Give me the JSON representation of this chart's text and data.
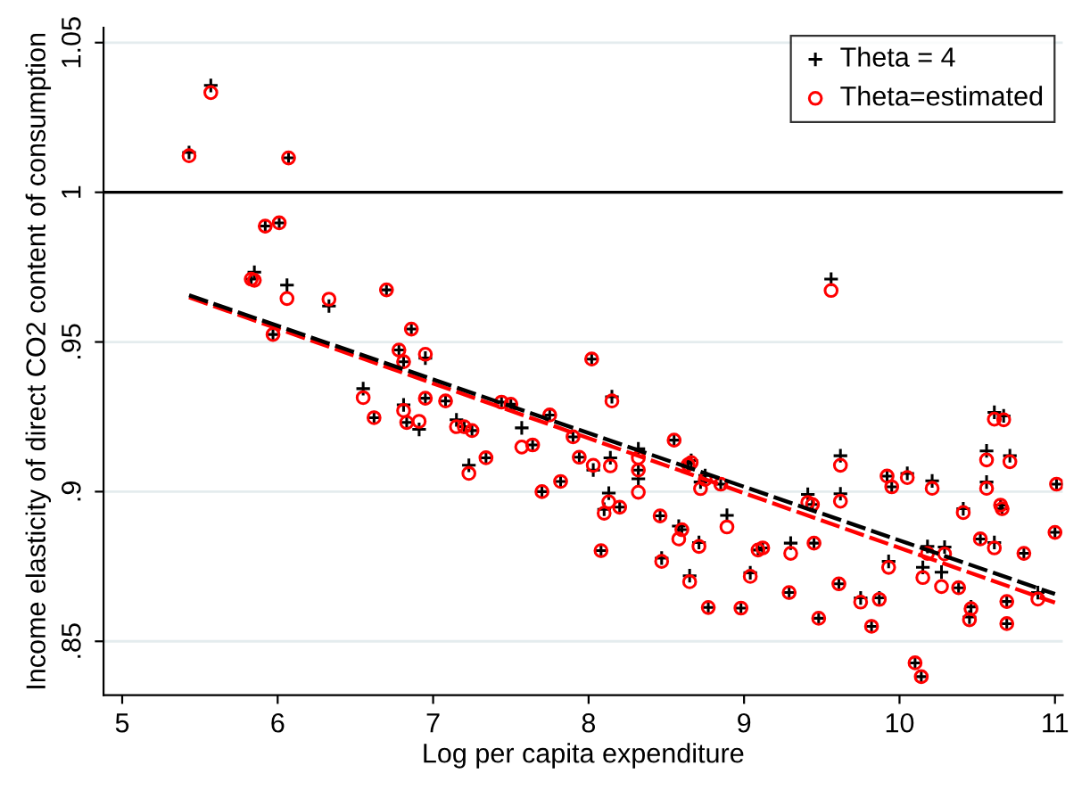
{
  "chart_data": {
    "type": "scatter",
    "xlabel": "Log per capita expenditure",
    "ylabel": "Income elasticity of direct CO2 content of consumption",
    "xlim": [
      4.88,
      11.05
    ],
    "ylim": [
      0.832,
      1.055
    ],
    "xticks": [
      5,
      6,
      7,
      8,
      9,
      10,
      11
    ],
    "yticks": [
      {
        "value": 0.85,
        "label": ".85"
      },
      {
        "value": 0.9,
        "label": ".9"
      },
      {
        "value": 0.95,
        "label": ".95"
      },
      {
        "value": 1,
        "label": "1"
      },
      {
        "value": 1.05,
        "label": "1.05"
      }
    ],
    "grid": "y",
    "legend": "top right",
    "ref_lines": [
      {
        "axis": "y",
        "value": 1,
        "color": "#000000",
        "line_style": "solid"
      }
    ],
    "series": [
      {
        "name": "Theta = 4",
        "marker": "cross",
        "color": "#000000",
        "x": [
          5.43,
          5.57,
          6.07,
          5.92,
          6.01,
          5.83,
          5.85,
          6.06,
          5.97,
          6.33,
          6.7,
          6.86,
          6.78,
          6.81,
          6.95,
          6.95,
          7.08,
          6.55,
          6.62,
          6.81,
          6.83,
          6.91,
          7.15,
          7.2,
          7.25,
          7.23,
          7.34,
          7.44,
          7.5,
          7.57,
          7.64,
          7.75,
          7.7,
          7.82,
          7.9,
          7.94,
          8.02,
          8.03,
          8.08,
          8.1,
          8.15,
          8.14,
          8.13,
          8.2,
          8.32,
          8.32,
          8.32,
          8.46,
          8.47,
          8.55,
          8.58,
          8.6,
          8.64,
          8.66,
          8.65,
          8.71,
          8.72,
          8.75,
          8.77,
          8.85,
          8.89,
          8.98,
          9.04,
          9.09,
          9.12,
          9.29,
          9.3,
          9.41,
          9.44,
          9.45,
          9.48,
          9.56,
          9.62,
          9.62,
          9.61,
          9.75,
          9.82,
          9.87,
          9.92,
          9.95,
          9.93,
          10.05,
          10.1,
          10.14,
          10.15,
          10.18,
          10.21,
          10.29,
          10.27,
          10.38,
          10.41,
          10.46,
          10.45,
          10.52,
          10.56,
          10.56,
          10.61,
          10.67,
          10.61,
          10.65,
          10.66,
          10.69,
          10.69,
          10.71,
          10.8,
          10.89,
          11.01,
          11.0
        ],
        "values": [
          1.0133,
          1.0357,
          1.0115,
          0.9887,
          0.9898,
          0.971,
          0.9733,
          0.969,
          0.9525,
          0.962,
          0.9674,
          0.9543,
          0.9473,
          0.9434,
          0.9446,
          0.9312,
          0.9303,
          0.9344,
          0.9247,
          0.929,
          0.9231,
          0.9208,
          0.924,
          0.9217,
          0.9204,
          0.9088,
          0.9113,
          0.9299,
          0.9292,
          0.9213,
          0.9156,
          0.9256,
          0.9,
          0.9034,
          0.9183,
          0.9115,
          0.9443,
          0.9072,
          0.8803,
          0.8941,
          0.9317,
          0.9113,
          0.8995,
          0.8948,
          0.9143,
          0.9072,
          0.9043,
          0.8919,
          0.8778,
          0.9172,
          0.8885,
          0.8873,
          0.9095,
          0.9104,
          0.8719,
          0.883,
          0.9032,
          0.9054,
          0.8613,
          0.9025,
          0.8921,
          0.8611,
          0.8729,
          0.8805,
          0.8812,
          0.8663,
          0.8828,
          0.8991,
          0.8957,
          0.8828,
          0.8577,
          0.971,
          0.912,
          0.8993,
          0.8692,
          0.8645,
          0.855,
          0.8645,
          0.9052,
          0.9016,
          0.8767,
          0.9061,
          0.8428,
          0.8382,
          0.8747,
          0.8817,
          0.9036,
          0.8815,
          0.8731,
          0.8679,
          0.8943,
          0.8615,
          0.8581,
          0.8842,
          0.9136,
          0.9032,
          0.9265,
          0.9253,
          0.883,
          0.8955,
          0.8943,
          0.8633,
          0.8559,
          0.912,
          0.8794,
          0.8663,
          0.9025,
          0.8864
        ]
      },
      {
        "name": "Theta=estimated",
        "marker": "circle",
        "color": "#ff0000",
        "x": [
          5.43,
          5.57,
          6.07,
          5.92,
          6.01,
          5.83,
          5.85,
          6.06,
          5.97,
          6.33,
          6.7,
          6.86,
          6.78,
          6.81,
          6.95,
          6.95,
          7.08,
          6.55,
          6.62,
          6.81,
          6.83,
          6.91,
          7.15,
          7.2,
          7.25,
          7.23,
          7.34,
          7.44,
          7.5,
          7.57,
          7.64,
          7.75,
          7.7,
          7.82,
          7.9,
          7.94,
          8.02,
          8.03,
          8.08,
          8.1,
          8.15,
          8.14,
          8.13,
          8.2,
          8.32,
          8.32,
          8.32,
          8.46,
          8.47,
          8.55,
          8.58,
          8.6,
          8.64,
          8.66,
          8.65,
          8.71,
          8.72,
          8.75,
          8.77,
          8.85,
          8.89,
          8.98,
          9.04,
          9.09,
          9.12,
          9.29,
          9.3,
          9.41,
          9.44,
          9.45,
          9.48,
          9.56,
          9.62,
          9.62,
          9.61,
          9.75,
          9.82,
          9.87,
          9.92,
          9.95,
          9.93,
          10.05,
          10.1,
          10.14,
          10.15,
          10.18,
          10.21,
          10.29,
          10.27,
          10.38,
          10.41,
          10.46,
          10.45,
          10.52,
          10.56,
          10.56,
          10.61,
          10.67,
          10.61,
          10.65,
          10.66,
          10.69,
          10.69,
          10.71,
          10.8,
          10.89,
          11.01,
          11.0
        ],
        "values": [
          1.0122,
          1.0333,
          1.0115,
          0.9887,
          0.9898,
          0.971,
          0.9706,
          0.9645,
          0.9525,
          0.9643,
          0.9674,
          0.9543,
          0.9473,
          0.9434,
          0.9459,
          0.9312,
          0.9303,
          0.9314,
          0.9247,
          0.9271,
          0.9231,
          0.9235,
          0.9217,
          0.9217,
          0.9204,
          0.9061,
          0.9113,
          0.9299,
          0.9292,
          0.9149,
          0.9156,
          0.9256,
          0.9,
          0.9034,
          0.9183,
          0.9115,
          0.9443,
          0.9088,
          0.8803,
          0.8928,
          0.9303,
          0.9086,
          0.8966,
          0.8948,
          0.9113,
          0.9072,
          0.8998,
          0.8919,
          0.8767,
          0.9172,
          0.8842,
          0.8873,
          0.909,
          0.9097,
          0.8699,
          0.8817,
          0.901,
          0.9041,
          0.8613,
          0.9025,
          0.8882,
          0.8611,
          0.8717,
          0.8805,
          0.8812,
          0.8663,
          0.8794,
          0.8964,
          0.8957,
          0.8828,
          0.8577,
          0.9672,
          0.9088,
          0.8968,
          0.8692,
          0.8631,
          0.855,
          0.864,
          0.9052,
          0.9016,
          0.8747,
          0.9047,
          0.8428,
          0.8382,
          0.8713,
          0.8794,
          0.9011,
          0.8792,
          0.8683,
          0.8679,
          0.893,
          0.8609,
          0.8572,
          0.8842,
          0.9106,
          0.9011,
          0.9242,
          0.924,
          0.8812,
          0.8955,
          0.8943,
          0.8633,
          0.8559,
          0.91,
          0.8794,
          0.8641,
          0.9025,
          0.8864
        ]
      },
      {
        "type": "line",
        "line_style": "dashed",
        "color": "#ff0000",
        "x": [
          5.43,
          11.0
        ],
        "values": [
          0.9649,
          0.8629
        ]
      },
      {
        "type": "line",
        "line_style": "dashed",
        "color": "#000000",
        "x": [
          5.43,
          11.0
        ],
        "values": [
          0.9656,
          0.8658
        ]
      }
    ]
  }
}
